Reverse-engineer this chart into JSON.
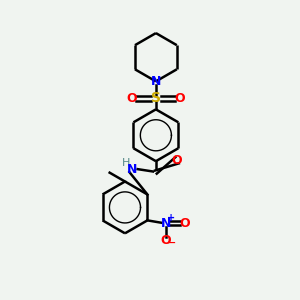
{
  "bg_color": "#f0f4f0",
  "line_color": "#000000",
  "bond_width": 1.8,
  "colors": {
    "N": "#0000ff",
    "O": "#ff0000",
    "S": "#ccaa00",
    "C": "#000000",
    "H": "#558888"
  },
  "figsize": [
    3.0,
    3.0
  ],
  "dpi": 100
}
